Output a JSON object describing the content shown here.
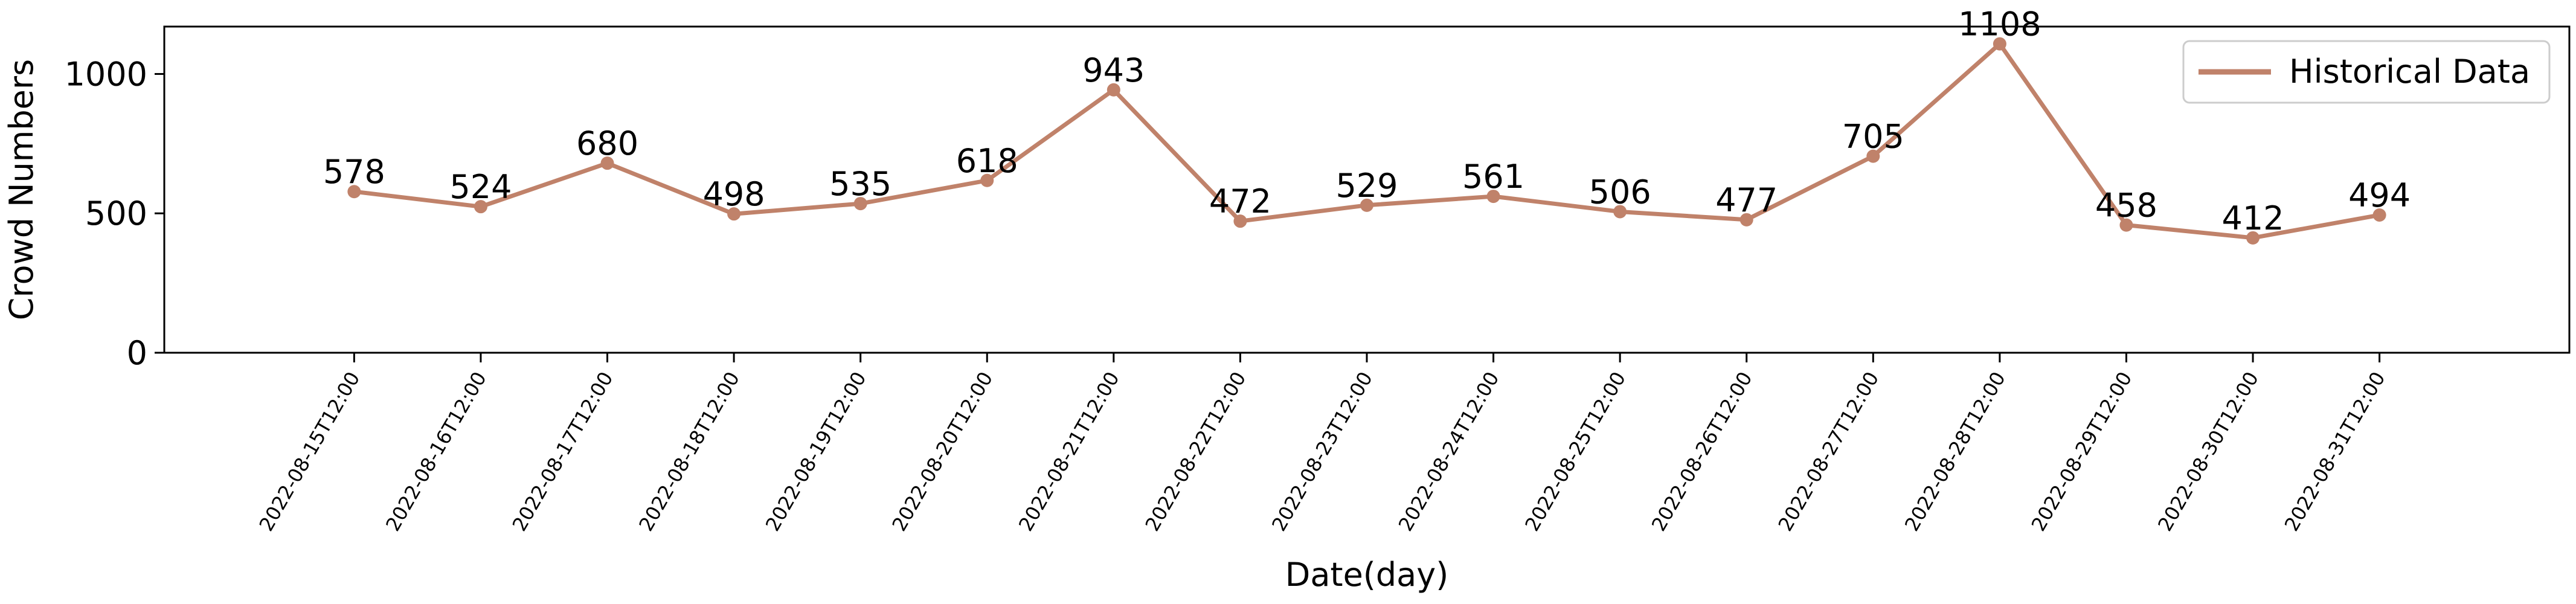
{
  "chart_data": {
    "type": "line",
    "title": "",
    "xlabel": "Date(day)",
    "ylabel": "Crowd Numbers",
    "x": [
      "2022-08-15T12:00",
      "2022-08-16T12:00",
      "2022-08-17T12:00",
      "2022-08-18T12:00",
      "2022-08-19T12:00",
      "2022-08-20T12:00",
      "2022-08-21T12:00",
      "2022-08-22T12:00",
      "2022-08-23T12:00",
      "2022-08-24T12:00",
      "2022-08-25T12:00",
      "2022-08-26T12:00",
      "2022-08-27T12:00",
      "2022-08-28T12:00",
      "2022-08-29T12:00",
      "2022-08-30T12:00",
      "2022-08-31T12:00"
    ],
    "series": [
      {
        "name": "Historical Data",
        "color": "#c0826a",
        "values": [
          578,
          524,
          680,
          498,
          535,
          618,
          943,
          472,
          529,
          561,
          506,
          477,
          705,
          1108,
          458,
          412,
          494
        ]
      }
    ],
    "ylim": [
      0,
      1170
    ],
    "yticks": [
      0,
      500,
      1000
    ],
    "xlim": [
      "2022-08-14",
      "2022-09-02"
    ],
    "legend_position": "top-right",
    "grid": false
  }
}
